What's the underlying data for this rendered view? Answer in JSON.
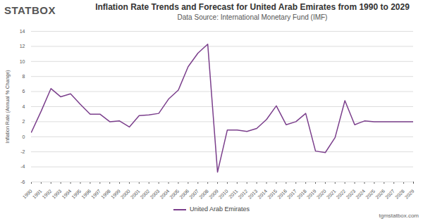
{
  "chart_data": {
    "type": "line",
    "title": "Inflation Rate Trends and Forecast for United Arab Emirates from 1990 to 2029",
    "subtitle": "Data Source: International Monetary Fund (IMF)",
    "logo": "STATBOX",
    "caption": "tgmstatbox.com",
    "y_label": "Inflation Rate (Annual % Change)",
    "x": [
      1990,
      1991,
      1992,
      1993,
      1994,
      1995,
      1996,
      1997,
      1998,
      1999,
      2000,
      2001,
      2002,
      2003,
      2004,
      2005,
      2006,
      2007,
      2008,
      2009,
      2010,
      2011,
      2012,
      2013,
      2014,
      2015,
      2016,
      2017,
      2018,
      2019,
      2020,
      2021,
      2022,
      2023,
      2024,
      2025,
      2026,
      2027,
      2028,
      2029
    ],
    "series": [
      {
        "name": "United Arab Emirates",
        "color": "#7b3f8c",
        "values": [
          0.6,
          3.4,
          6.4,
          5.3,
          5.7,
          4.3,
          3.0,
          3.0,
          2.0,
          2.1,
          1.3,
          2.8,
          2.9,
          3.1,
          5.0,
          6.2,
          9.3,
          11.1,
          12.3,
          -4.7,
          0.9,
          0.9,
          0.7,
          1.1,
          2.3,
          4.1,
          1.6,
          2.0,
          3.1,
          -1.9,
          -2.1,
          -0.1,
          4.8,
          1.6,
          2.1,
          2.0,
          2.0,
          2.0,
          2.0,
          2.0
        ]
      }
    ],
    "xlim": [
      1990,
      2029
    ],
    "xticks": [
      1990,
      1991,
      1992,
      1993,
      1994,
      1995,
      1996,
      1997,
      1998,
      1999,
      2000,
      2001,
      2002,
      2003,
      2004,
      2005,
      2006,
      2007,
      2008,
      2009,
      2010,
      2011,
      2012,
      2013,
      2014,
      2015,
      2016,
      2017,
      2018,
      2019,
      2020,
      2021,
      2022,
      2023,
      2024,
      2025,
      2026,
      2027,
      2028,
      2029
    ],
    "ylim": [
      -6,
      14
    ],
    "yticks": [
      -6,
      -4,
      -2,
      0,
      2,
      4,
      6,
      8,
      10,
      12,
      14
    ],
    "grid": true,
    "legend": "bottom"
  }
}
